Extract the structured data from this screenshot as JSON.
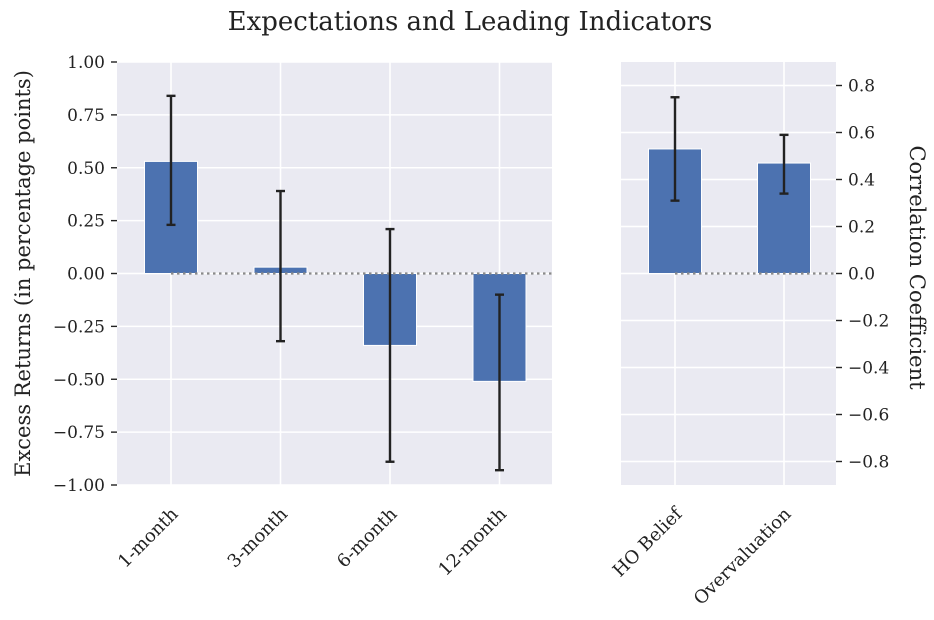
{
  "title": "Expectations and Leading Indicators",
  "chart_data": [
    {
      "type": "bar",
      "categories": [
        "1-month",
        "3-month",
        "6-month",
        "12-month"
      ],
      "values": [
        0.53,
        0.03,
        -0.34,
        -0.51
      ],
      "error_low": [
        0.23,
        -0.32,
        -0.89,
        -0.93
      ],
      "error_high": [
        0.84,
        0.39,
        0.21,
        -0.1
      ],
      "ylabel": "Excess Returns (in percentage points)",
      "ylim": [
        -1.0,
        1.0
      ],
      "yticks": [
        1.0,
        0.75,
        0.5,
        0.25,
        0.0,
        -0.25,
        -0.5,
        -0.75,
        -1.0
      ],
      "ytick_labels": [
        "1.00",
        "0.75",
        "0.50",
        "0.25",
        "0.00",
        "−0.25",
        "−0.50",
        "−0.75",
        "−1.00"
      ],
      "axis_side": "left",
      "grid": true,
      "zero_line": "dotted"
    },
    {
      "type": "bar",
      "categories": [
        "HO Belief",
        "Overvaluation"
      ],
      "values": [
        0.53,
        0.47
      ],
      "error_low": [
        0.31,
        0.34
      ],
      "error_high": [
        0.75,
        0.59
      ],
      "ylabel": "Correlation Coefficient",
      "ylim": [
        -0.9,
        0.9
      ],
      "yticks": [
        0.8,
        0.6,
        0.4,
        0.2,
        0.0,
        -0.2,
        -0.4,
        -0.6,
        -0.8
      ],
      "ytick_labels": [
        "0.8",
        "0.6",
        "0.4",
        "0.2",
        "0.0",
        "−0.2",
        "−0.4",
        "−0.6",
        "−0.8"
      ],
      "axis_side": "right",
      "grid": true,
      "zero_line": "dotted"
    }
  ],
  "colors": {
    "bar": "#4c72b0",
    "plot_background": "#eaeaf2",
    "grid": "#ffffff",
    "error_bar": "#222222",
    "zero_line": "#8a8a8a"
  }
}
